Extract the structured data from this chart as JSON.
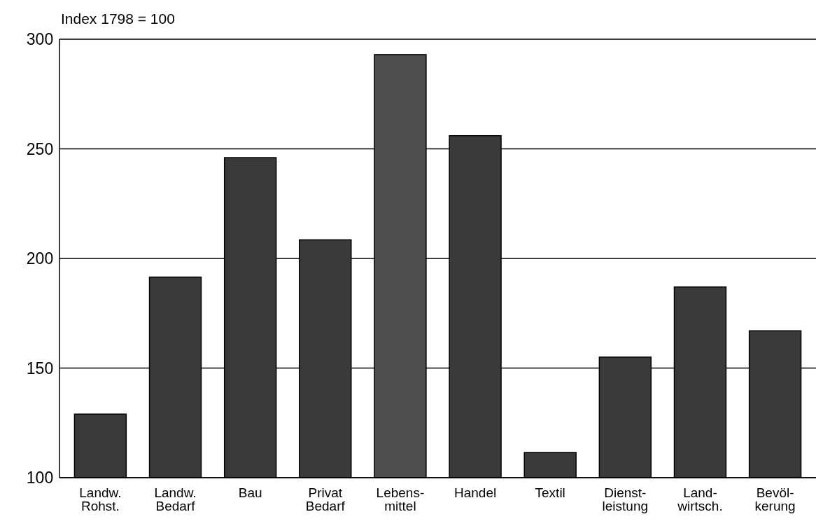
{
  "chart_data": {
    "type": "bar",
    "ylabel": "Index 1798 = 100",
    "categories": [
      "Landw.\nRohst.",
      "Landw.\nBedarf",
      "Bau",
      "Privat\nBedarf",
      "Lebens-\nmittel",
      "Handel",
      "Textil",
      "Dienst-\nleistung",
      "Land-\nwirtsch.",
      "Bevöl-\nkerung"
    ],
    "values": [
      129,
      191.5,
      246,
      208.5,
      293,
      256,
      111.5,
      155,
      187,
      167
    ],
    "colors": [
      "#3a3a3a",
      "#3a3a3a",
      "#3a3a3a",
      "#3a3a3a",
      "#4e4e4e",
      "#3a3a3a",
      "#3a3a3a",
      "#3a3a3a",
      "#3a3a3a",
      "#3a3a3a"
    ],
    "ylim": [
      100,
      300
    ],
    "yticks": [
      100,
      150,
      200,
      250,
      300
    ],
    "grid": "y"
  }
}
